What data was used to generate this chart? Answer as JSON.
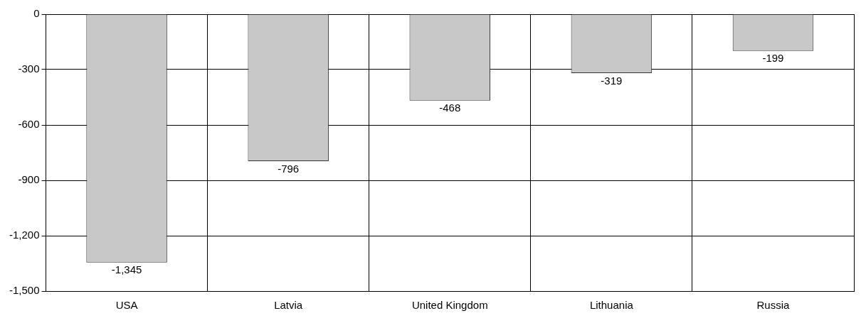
{
  "chart_data": {
    "type": "bar",
    "categories": [
      "USA",
      "Latvia",
      "United Kingdom",
      "Lithuania",
      "Russia"
    ],
    "values": [
      -1345,
      -796,
      -468,
      -319,
      -199
    ],
    "color": "#c8c8c8",
    "value_labels": [
      "-1,345",
      "-796",
      "-468",
      "-319",
      "-199"
    ],
    "ylim": [
      -1500,
      0
    ],
    "yticks": [
      {
        "value": -1500,
        "label": "-1,500"
      },
      {
        "value": -1200,
        "label": "-1,200"
      },
      -900,
      -600,
      -300,
      0
    ],
    "grid": true,
    "legend": false
  }
}
